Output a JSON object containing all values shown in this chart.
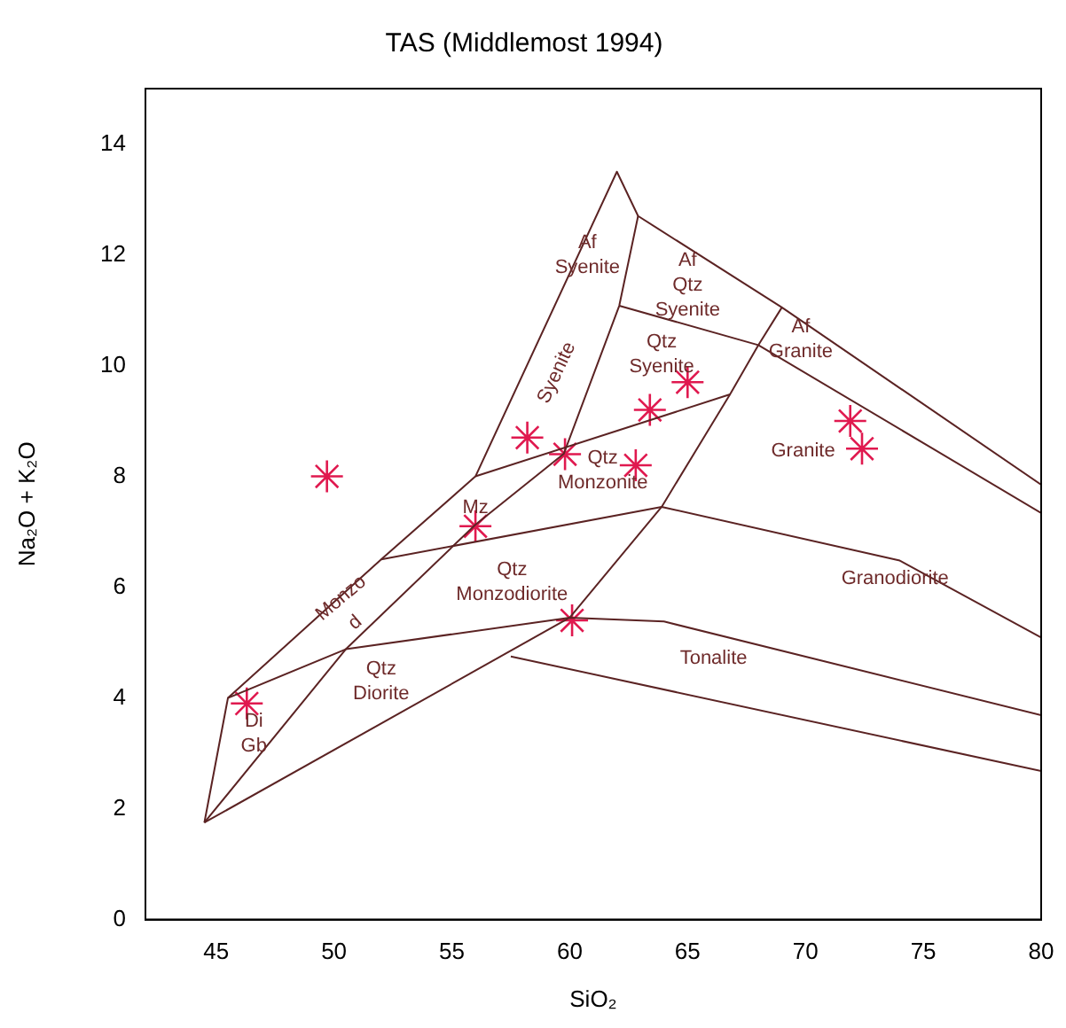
{
  "chart_data": {
    "type": "line",
    "title": "TAS (Middlemost 1994)",
    "xlabel": "SiO₂",
    "ylabel": "Na₂O + K₂O",
    "xlim": [
      42,
      80
    ],
    "ylim": [
      0,
      15
    ],
    "xticks": [
      45,
      50,
      55,
      60,
      65,
      70,
      75,
      80
    ],
    "yticks": [
      0,
      2,
      4,
      6,
      8,
      10,
      12,
      14
    ],
    "series": [
      {
        "color": "#5b2323",
        "marker": "none",
        "x": [
          44.5,
          45.5,
          52.0,
          56.0,
          62.0,
          62.9,
          69.0,
          80
        ],
        "values": [
          1.75,
          4.0,
          6.5,
          8.0,
          13.5,
          12.7,
          11.05,
          7.85
        ]
      },
      {
        "color": "#5b2323",
        "marker": "none",
        "x": [
          44.5,
          50.5,
          56.0,
          59.75,
          62.1,
          62.9
        ],
        "values": [
          1.75,
          4.88,
          7.13,
          8.41,
          11.08,
          12.7
        ]
      },
      {
        "color": "#5b2323",
        "marker": "none",
        "x": [
          62.1,
          68.0,
          80
        ],
        "values": [
          11.08,
          10.37,
          7.34
        ]
      },
      {
        "color": "#5b2323",
        "marker": "none",
        "x": [
          69.0,
          68.0,
          66.8,
          63.9,
          60.0
        ],
        "values": [
          11.05,
          10.37,
          9.48,
          7.45,
          5.45
        ]
      },
      {
        "color": "#5b2323",
        "marker": "none",
        "x": [
          56.0,
          66.8
        ],
        "values": [
          8.0,
          9.48
        ]
      },
      {
        "color": "#5b2323",
        "marker": "none",
        "x": [
          52.0,
          63.9,
          74.0,
          80
        ],
        "values": [
          6.5,
          7.45,
          6.48,
          5.09
        ]
      },
      {
        "color": "#5b2323",
        "marker": "none",
        "x": [
          45.5,
          50.5,
          60.0,
          64.0,
          80
        ],
        "values": [
          4.0,
          4.88,
          5.45,
          5.38,
          3.69
        ]
      },
      {
        "color": "#5b2323",
        "marker": "none",
        "x": [
          57.5,
          80
        ],
        "values": [
          4.75,
          2.68
        ]
      },
      {
        "color": "#5b2323",
        "marker": "none",
        "x": [
          44.5,
          60.0
        ],
        "values": [
          1.75,
          5.45
        ]
      },
      {
        "type": "scatter",
        "color": "#e0194f",
        "marker": "cross",
        "x": [
          49.7,
          58.2,
          59.8,
          56.0,
          62.8,
          63.4,
          65.0,
          71.9,
          72.4,
          60.1,
          46.3
        ],
        "values": [
          8.0,
          8.7,
          8.4,
          7.1,
          8.2,
          9.2,
          9.7,
          9.0,
          8.5,
          5.4,
          3.9
        ]
      }
    ],
    "annotations": [
      "Af\nSyenite",
      "Af\nQtz\nSyenite",
      "Syenite",
      "Qtz\nSyenite",
      "Af\nGranite",
      "Granite",
      "Qtz\nMonzonite",
      "Mz",
      "Qtz\nMonzodiorite",
      "Granodiorite",
      "Tonalite",
      "Monzo",
      "d",
      "Di\nGb",
      "Qtz\nDiorite"
    ]
  }
}
